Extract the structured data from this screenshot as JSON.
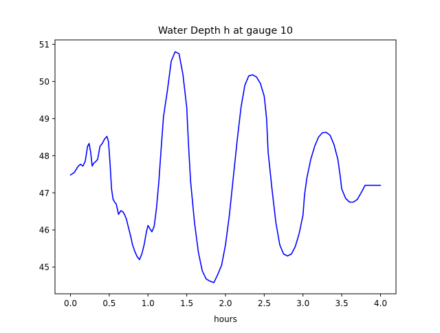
{
  "chart_data": {
    "type": "line",
    "title": "Water Depth h at gauge 10",
    "xlabel": "hours",
    "ylabel": "",
    "xlim": [
      -0.2,
      4.2
    ],
    "ylim": [
      44.28,
      51.12
    ],
    "xticks": [
      0.0,
      0.5,
      1.0,
      1.5,
      2.0,
      2.5,
      3.0,
      3.5,
      4.0
    ],
    "xtick_labels": [
      "0.0",
      "0.5",
      "1.0",
      "1.5",
      "2.0",
      "2.5",
      "3.0",
      "3.5",
      "4.0"
    ],
    "yticks": [
      45,
      46,
      47,
      48,
      49,
      50,
      51
    ],
    "ytick_labels": [
      "45",
      "46",
      "47",
      "48",
      "49",
      "50",
      "51"
    ],
    "grid": false,
    "legend": "none",
    "series": [
      {
        "color": "#0000ff",
        "x": [
          0.0,
          0.05,
          0.1,
          0.13,
          0.16,
          0.19,
          0.22,
          0.24,
          0.26,
          0.28,
          0.3,
          0.32,
          0.35,
          0.38,
          0.41,
          0.44,
          0.47,
          0.49,
          0.51,
          0.53,
          0.55,
          0.57,
          0.59,
          0.62,
          0.65,
          0.68,
          0.7,
          0.72,
          0.75,
          0.78,
          0.8,
          0.83,
          0.86,
          0.89,
          0.92,
          0.95,
          0.98,
          1.0,
          1.02,
          1.05,
          1.08,
          1.11,
          1.14,
          1.17,
          1.2,
          1.25,
          1.3,
          1.35,
          1.4,
          1.45,
          1.5,
          1.52,
          1.55,
          1.6,
          1.65,
          1.7,
          1.75,
          1.8,
          1.85,
          1.9,
          1.95,
          2.0,
          2.05,
          2.1,
          2.15,
          2.2,
          2.25,
          2.3,
          2.35,
          2.4,
          2.45,
          2.5,
          2.53,
          2.55,
          2.6,
          2.65,
          2.7,
          2.75,
          2.8,
          2.85,
          2.9,
          2.95,
          3.0,
          3.02,
          3.05,
          3.1,
          3.15,
          3.2,
          3.25,
          3.3,
          3.35,
          3.4,
          3.45,
          3.48,
          3.5,
          3.55,
          3.6,
          3.65,
          3.7,
          3.75,
          3.8,
          3.85,
          3.9,
          3.95,
          4.0
        ],
        "y": [
          47.48,
          47.55,
          47.72,
          47.77,
          47.72,
          47.85,
          48.25,
          48.33,
          48.1,
          47.72,
          47.8,
          47.83,
          47.9,
          48.25,
          48.33,
          48.45,
          48.52,
          48.38,
          47.8,
          47.1,
          46.82,
          46.75,
          46.7,
          46.42,
          46.52,
          46.48,
          46.4,
          46.3,
          46.05,
          45.8,
          45.6,
          45.42,
          45.28,
          45.2,
          45.35,
          45.6,
          45.95,
          46.12,
          46.05,
          45.95,
          46.1,
          46.6,
          47.3,
          48.2,
          49.05,
          49.75,
          50.55,
          50.8,
          50.75,
          50.2,
          49.3,
          48.4,
          47.3,
          46.2,
          45.4,
          44.9,
          44.68,
          44.62,
          44.58,
          44.8,
          45.05,
          45.6,
          46.4,
          47.4,
          48.4,
          49.3,
          49.9,
          50.15,
          50.18,
          50.12,
          49.95,
          49.6,
          49.0,
          48.1,
          47.1,
          46.2,
          45.6,
          45.35,
          45.3,
          45.35,
          45.55,
          45.9,
          46.4,
          46.95,
          47.4,
          47.9,
          48.25,
          48.5,
          48.62,
          48.63,
          48.55,
          48.3,
          47.9,
          47.45,
          47.1,
          46.85,
          46.75,
          46.75,
          46.82,
          47.0,
          47.2,
          47.2,
          47.2,
          47.2,
          47.2
        ]
      }
    ]
  }
}
